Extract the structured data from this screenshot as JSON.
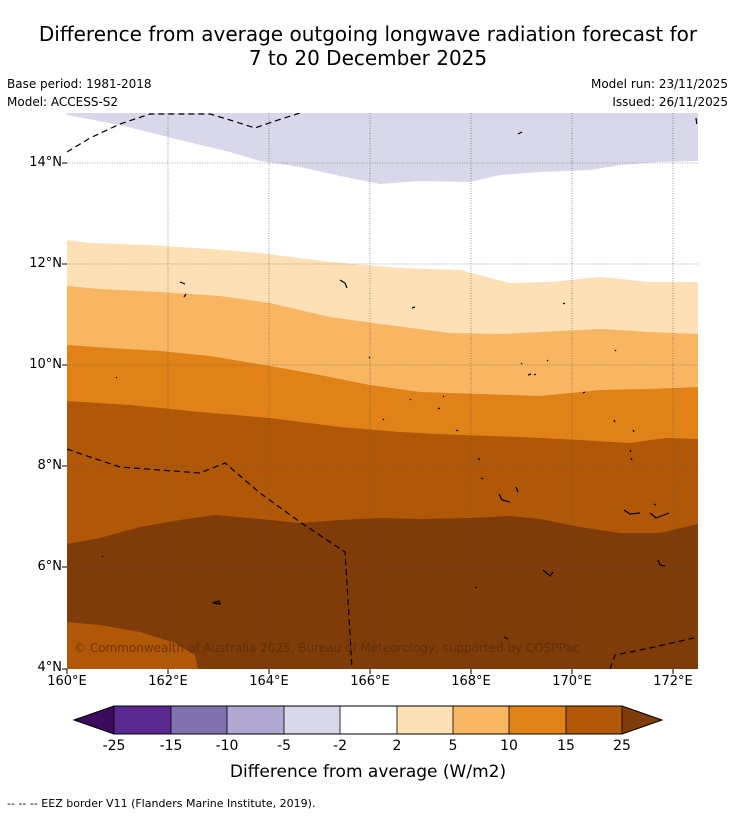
{
  "title_line1": "Difference from average outgoing longwave radiation forecast for",
  "title_line2": "7 to 20 December 2025",
  "base_period": "Base period: 1981-2018",
  "model": "Model: ACCESS-S2",
  "model_run": "Model run: 23/11/2025",
  "issued": "Issued: 26/11/2025",
  "lat_labels": [
    "14°N",
    "12°N",
    "10°N",
    "8°N",
    "6°N",
    "4°N"
  ],
  "lon_labels": [
    "160°E",
    "162°E",
    "164°E",
    "166°E",
    "168°E",
    "170°E",
    "172°E"
  ],
  "colorbar": {
    "ticks": [
      "-25",
      "-15",
      "-10",
      "-5",
      "-2",
      "2",
      "5",
      "10",
      "15",
      "25"
    ],
    "label": "Difference from average (W/m2)",
    "colors": [
      "#3d0a5e",
      "#5a2a91",
      "#8271b0",
      "#b1a8d2",
      "#d8d8ea",
      "#ffffff",
      "#fde0b5",
      "#f9b662",
      "#e08218",
      "#b15808",
      "#7f3b08"
    ]
  },
  "copyright": "© Commonwealth of Australia 2025, Bureau of Meteorology, supported by COSPPac",
  "footer": "--  --  -- EEZ border V11 (Flanders Marine Institute, 2019)."
}
